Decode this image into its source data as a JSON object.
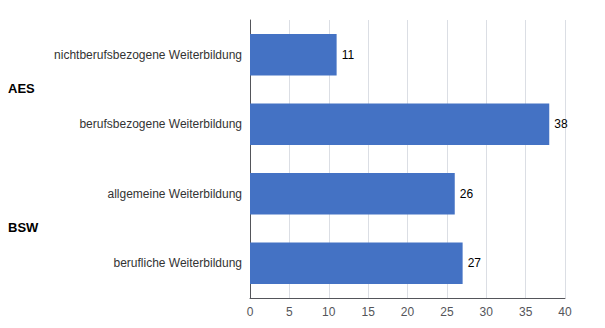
{
  "chart_data": {
    "type": "bar",
    "orientation": "horizontal",
    "categories": [
      "berufliche Weiterbildung",
      "allgemeine Weiterbildung",
      "berufsbezogene Weiterbildung",
      "nichtberufsbezogene Weiterbildung"
    ],
    "values": [
      27,
      26,
      38,
      11
    ],
    "color": "#4472C4",
    "xlim": [
      0,
      40
    ],
    "xticks": [
      0,
      5,
      10,
      15,
      20,
      25,
      30,
      35,
      40
    ],
    "grid": true,
    "data_labels": true,
    "annotations": [
      "BSW",
      "AES"
    ]
  }
}
